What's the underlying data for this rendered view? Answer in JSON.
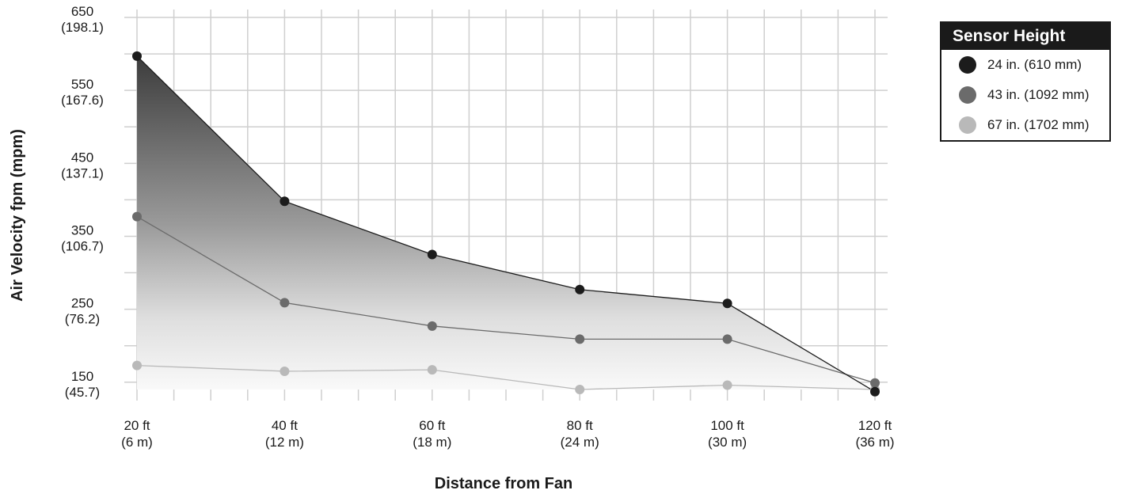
{
  "chart_data": {
    "type": "line",
    "ylabel": "Air Velocity fpm (mpm)",
    "xlabel": "Distance from Fan",
    "x": [
      20,
      40,
      60,
      80,
      100,
      120
    ],
    "x_tick_labels": [
      [
        "20 ft",
        "(6 m)"
      ],
      [
        "40 ft",
        "(12 m)"
      ],
      [
        "60 ft",
        "(18 m)"
      ],
      [
        "80 ft",
        "(24 m)"
      ],
      [
        "100 ft",
        "(30 m)"
      ],
      [
        "120 ft",
        "(36 m)"
      ]
    ],
    "y_ticks": [
      150,
      250,
      350,
      450,
      550,
      650
    ],
    "y_tick_labels": [
      [
        "150",
        "(45.7)"
      ],
      [
        "250",
        "(76.2)"
      ],
      [
        "350",
        "(106.7)"
      ],
      [
        "450",
        "(137.1)"
      ],
      [
        "550",
        "(167.6)"
      ],
      [
        "650",
        "(198.1)"
      ]
    ],
    "xlim": [
      20,
      120
    ],
    "ylim": [
      140,
      650
    ],
    "grid": true,
    "legend_title": "Sensor Height",
    "legend_position": "top-right",
    "series": [
      {
        "name": "24 in. (610 mm)",
        "color": "#1c1c1c",
        "values": [
          597,
          398,
          325,
          277,
          258,
          137
        ]
      },
      {
        "name": "43 in. (1092 mm)",
        "color": "#6b6b6b",
        "values": [
          377,
          259,
          227,
          209,
          209,
          149
        ]
      },
      {
        "name": "67 in. (1702 mm)",
        "color": "#b9b9b9",
        "values": [
          173,
          165,
          167,
          140,
          146,
          140
        ]
      }
    ]
  }
}
